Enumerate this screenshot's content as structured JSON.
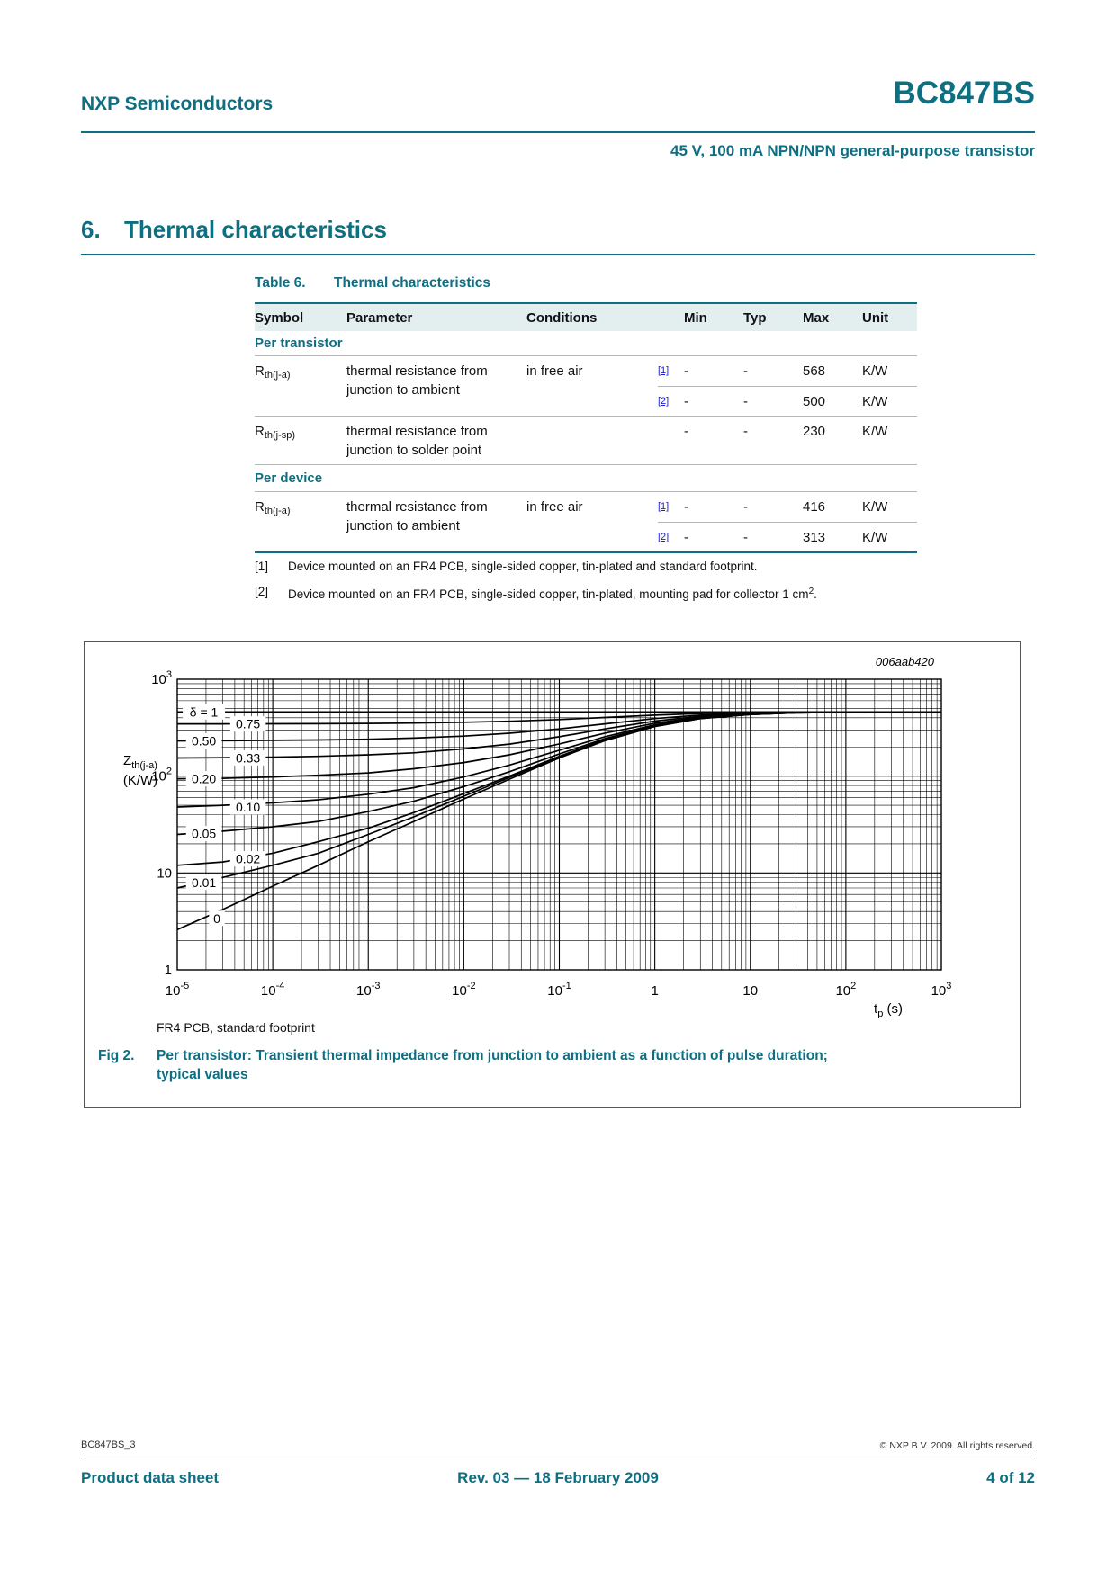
{
  "page": {
    "vendor": "NXP Semiconductors",
    "part": "BC847BS",
    "subtitle": "45 V, 100 mA NPN/NPN general-purpose transistor"
  },
  "section": {
    "number": "6.",
    "title": "Thermal characteristics"
  },
  "table": {
    "label": "Table 6.",
    "title": "Thermal characteristics",
    "col_symbol": "Symbol",
    "col_parameter": "Parameter",
    "col_conditions": "Conditions",
    "col_min": "Min",
    "col_typ": "Typ",
    "col_max": "Max",
    "col_unit": "Unit",
    "per_transistor": "Per transistor",
    "per_device": "Per device",
    "dash": "-",
    "r1": {
      "sym_base": "R",
      "sym_sub": "th(j-a)",
      "param": "thermal resistance from junction to ambient",
      "cond": "in free air",
      "ref1": "[1]",
      "min1": "-",
      "typ1": "-",
      "max1": "568",
      "unit1": "K/W",
      "ref2": "[2]",
      "min2": "-",
      "typ2": "-",
      "max2": "500",
      "unit2": "K/W"
    },
    "r2": {
      "sym_base": "R",
      "sym_sub": "th(j-sp)",
      "param": "thermal resistance from junction to solder point",
      "min": "-",
      "typ": "-",
      "max": "230",
      "unit": "K/W"
    },
    "r3": {
      "sym_base": "R",
      "sym_sub": "th(j-a)",
      "param": "thermal resistance from junction to ambient",
      "cond": "in free air",
      "ref1": "[1]",
      "min1": "-",
      "typ1": "-",
      "max1": "416",
      "unit1": "K/W",
      "ref2": "[2]",
      "min2": "-",
      "typ2": "-",
      "max2": "313",
      "unit2": "K/W"
    }
  },
  "footnotes": {
    "fn1_ref": "[1]",
    "fn1_text": "Device mounted on an FR4 PCB, single-sided copper, tin-plated and standard footprint.",
    "fn2_ref": "[2]",
    "fn2_text": "Device mounted on an FR4 PCB, single-sided copper, tin-plated, mounting pad for collector 1 cm",
    "fn2_sup": "2",
    "fn2_tail": "."
  },
  "figure": {
    "plot_id": "006aab420",
    "note": "FR4 PCB, standard footprint",
    "label": "Fig 2.",
    "caption_line1": "Per transistor: Transient thermal impedance from junction to ambient as a function of pulse duration;",
    "caption_line2": "typical values"
  },
  "chart_data": {
    "type": "line",
    "title": "Transient thermal impedance from junction to ambient vs pulse duration",
    "x_scale": "log",
    "y_scale": "log",
    "xlim": [
      1e-05,
      1000
    ],
    "ylim": [
      1,
      1000
    ],
    "xlabel_base": "t",
    "xlabel_sub": "p",
    "xlabel_unit": " (s)",
    "ylabel_base": "Z",
    "ylabel_sub": "th(j-a)",
    "ylabel_unit": "(K/W)",
    "grid": true,
    "legend": "labels on curves (duty cycle δ)",
    "x": [
      1e-05,
      3e-05,
      0.0001,
      0.0003,
      0.001,
      0.003,
      0.01,
      0.03,
      0.1,
      0.3,
      1,
      3,
      10,
      30,
      100,
      300,
      1000
    ],
    "series": [
      {
        "name": "δ = 1",
        "duty_cycle": 1,
        "label_x": 1.9e-05,
        "label_y": 460,
        "values": [
          460,
          460,
          460,
          460,
          460,
          460,
          460,
          460,
          460,
          460,
          460,
          460,
          460,
          460,
          460,
          460,
          460
        ]
      },
      {
        "name": "0.75",
        "duty_cycle": 0.75,
        "label_x": 5.5e-05,
        "label_y": 346,
        "values": [
          346,
          346,
          347,
          348,
          350,
          353,
          360,
          368,
          384,
          403,
          426,
          443,
          453,
          457,
          459,
          459,
          460
        ]
      },
      {
        "name": "0.50",
        "duty_cycle": 0.5,
        "label_x": 1.9e-05,
        "label_y": 231,
        "values": [
          231,
          232,
          234,
          236,
          240,
          247,
          259,
          277,
          307,
          346,
          393,
          427,
          447,
          455,
          458,
          459,
          460
        ]
      },
      {
        "name": "0.33",
        "duty_cycle": 0.33,
        "label_x": 5.5e-05,
        "label_y": 154,
        "values": [
          154,
          155,
          157,
          160,
          166,
          174,
          191,
          214,
          255,
          307,
          370,
          415,
          442,
          453,
          457,
          459,
          459
        ]
      },
      {
        "name": "0.20",
        "duty_cycle": 0.2,
        "label_x": 1.9e-05,
        "label_y": 94,
        "values": [
          94,
          95,
          98,
          102,
          108,
          119,
          138,
          166,
          215,
          278,
          352,
          406,
          438,
          452,
          456,
          458,
          459
        ]
      },
      {
        "name": "0.10",
        "duty_cycle": 0.1,
        "label_x": 5.5e-05,
        "label_y": 48,
        "values": [
          48,
          50,
          53,
          57,
          65,
          76,
          98,
          130,
          185,
          255,
          339,
          400,
          436,
          451,
          456,
          458,
          459
        ]
      },
      {
        "name": "0.05",
        "duty_cycle": 0.05,
        "label_x": 1.9e-05,
        "label_y": 25.5,
        "values": [
          25,
          27,
          30,
          34,
          43,
          55,
          78,
          111,
          169,
          243,
          332,
          396,
          434,
          450,
          455,
          458,
          459
        ]
      },
      {
        "name": "0.02",
        "duty_cycle": 0.02,
        "label_x": 5.5e-05,
        "label_y": 14,
        "values": [
          12,
          13,
          16,
          21,
          29,
          42,
          66,
          100,
          160,
          237,
          328,
          394,
          433,
          450,
          455,
          458,
          459
        ]
      },
      {
        "name": "0.01",
        "duty_cycle": 0.01,
        "label_x": 1.9e-05,
        "label_y": 8,
        "values": [
          7,
          9,
          12,
          16,
          25,
          38,
          62,
          97,
          157,
          234,
          326,
          394,
          433,
          450,
          455,
          458,
          459
        ]
      },
      {
        "name": "0",
        "duty_cycle": 0,
        "label_x": 2.6e-05,
        "label_y": 3.4,
        "values": [
          2.6,
          4.2,
          7.3,
          12,
          21,
          34,
          58,
          93,
          154,
          232,
          325,
          393,
          433,
          450,
          455,
          458,
          459
        ]
      }
    ],
    "x_ticks": [
      {
        "v": 1e-05,
        "label": "10^-5"
      },
      {
        "v": 0.0001,
        "label": "10^-4"
      },
      {
        "v": 0.001,
        "label": "10^-3"
      },
      {
        "v": 0.01,
        "label": "10^-2"
      },
      {
        "v": 0.1,
        "label": "10^-1"
      },
      {
        "v": 1,
        "label": "1"
      },
      {
        "v": 10,
        "label": "10"
      },
      {
        "v": 100,
        "label": "10^2"
      },
      {
        "v": 1000,
        "label": "10^3"
      }
    ],
    "y_ticks": [
      {
        "v": 1000,
        "label": "10^3"
      },
      {
        "v": 100,
        "label": "10^2"
      },
      {
        "v": 10,
        "label": "10"
      },
      {
        "v": 1,
        "label": "1"
      }
    ]
  },
  "footer": {
    "doc_id": "BC847BS_3",
    "copyright": "© NXP B.V. 2009. All rights reserved.",
    "sheet_type": "Product data sheet",
    "revision": "Rev. 03 — 18 February 2009",
    "page_no": "4 of 12"
  }
}
